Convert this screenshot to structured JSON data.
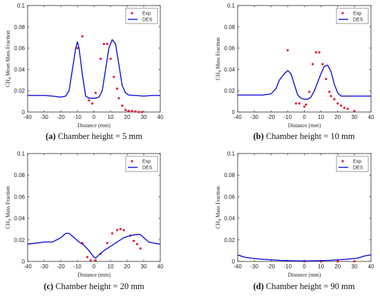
{
  "chart_data": [
    {
      "type": "scatter+line",
      "panel_letter": "(a)",
      "caption": "Chamber height = 5 mm",
      "xlabel": "Distance (mm)",
      "ylabel": "CH",
      "ylabel_sub": "4",
      "ylabel_rest": " Mean Mass Fraction",
      "xlim": [
        -40,
        40
      ],
      "ylim": [
        0,
        0.1
      ],
      "xticks": [
        "-40",
        "-30",
        "-20",
        "-10",
        "0",
        "10",
        "20",
        "30",
        "40"
      ],
      "yticks": [
        "0",
        "0.02",
        "0.04",
        "0.06",
        "0.08",
        "0.1"
      ],
      "legend": {
        "placement": "top-right",
        "entries": [
          "Exp",
          "DES"
        ]
      },
      "series": [
        {
          "name": "Exp",
          "kind": "scatter",
          "color": "#e8112d",
          "points": [
            [
              -10,
              0.06
            ],
            [
              -7,
              0.071
            ],
            [
              -3,
              0.011
            ],
            [
              -1,
              0.008
            ],
            [
              1,
              0.018
            ],
            [
              4,
              0.05
            ],
            [
              6,
              0.064
            ],
            [
              8,
              0.064
            ],
            [
              10,
              0.05
            ],
            [
              12,
              0.033
            ],
            [
              14,
              0.022
            ],
            [
              15,
              0.013
            ],
            [
              17,
              0.006
            ],
            [
              19,
              0.002
            ],
            [
              21,
              0.001
            ],
            [
              23,
              0.001
            ],
            [
              25,
              0.0005
            ],
            [
              27,
              0.0
            ],
            [
              29,
              0.0
            ]
          ]
        },
        {
          "name": "DES",
          "kind": "line",
          "color": "#0a0adc",
          "points": [
            [
              -40,
              0.0155
            ],
            [
              -30,
              0.0155
            ],
            [
              -25,
              0.015
            ],
            [
              -20,
              0.014
            ],
            [
              -17,
              0.015
            ],
            [
              -15,
              0.02
            ],
            [
              -13,
              0.04
            ],
            [
              -11,
              0.06
            ],
            [
              -10,
              0.066
            ],
            [
              -9,
              0.06
            ],
            [
              -7,
              0.035
            ],
            [
              -5,
              0.015
            ],
            [
              -3,
              0.013
            ],
            [
              -1,
              0.013
            ],
            [
              1,
              0.013
            ],
            [
              3,
              0.014
            ],
            [
              5,
              0.02
            ],
            [
              7,
              0.04
            ],
            [
              9,
              0.06
            ],
            [
              11,
              0.068
            ],
            [
              13,
              0.064
            ],
            [
              15,
              0.045
            ],
            [
              17,
              0.025
            ],
            [
              19,
              0.018
            ],
            [
              21,
              0.016
            ],
            [
              25,
              0.0155
            ],
            [
              30,
              0.015
            ],
            [
              35,
              0.0155
            ],
            [
              40,
              0.0155
            ]
          ]
        }
      ]
    },
    {
      "type": "scatter+line",
      "panel_letter": "(b)",
      "caption": "Chamber height = 10 mm",
      "xlabel": "Distance (mm)",
      "ylabel": "CH",
      "ylabel_sub": "4",
      "ylabel_rest": " Mass Fraction",
      "xlim": [
        -40,
        40
      ],
      "ylim": [
        0,
        0.1
      ],
      "xticks": [
        "-40",
        "-30",
        "-20",
        "-10",
        "0",
        "10",
        "20",
        "30",
        "40"
      ],
      "yticks": [
        "0",
        "0.02",
        "0.04",
        "0.06",
        "0.08",
        "0.1"
      ],
      "legend": {
        "placement": "top-right",
        "entries": [
          "Exp",
          "DES"
        ]
      },
      "series": [
        {
          "name": "Exp",
          "kind": "scatter",
          "color": "#e8112d",
          "points": [
            [
              -10,
              0.058
            ],
            [
              -5,
              0.008
            ],
            [
              -3,
              0.008
            ],
            [
              0,
              0.005
            ],
            [
              1,
              0.007
            ],
            [
              3,
              0.019
            ],
            [
              5,
              0.045
            ],
            [
              7,
              0.056
            ],
            [
              9,
              0.056
            ],
            [
              11,
              0.045
            ],
            [
              13,
              0.031
            ],
            [
              15,
              0.019
            ],
            [
              16,
              0.015
            ],
            [
              18,
              0.012
            ],
            [
              20,
              0.008
            ],
            [
              22,
              0.006
            ],
            [
              24,
              0.004
            ],
            [
              26,
              0.003
            ],
            [
              30,
              0.001
            ]
          ]
        },
        {
          "name": "DES",
          "kind": "line",
          "color": "#0a0adc",
          "points": [
            [
              -40,
              0.016
            ],
            [
              -30,
              0.016
            ],
            [
              -25,
              0.016
            ],
            [
              -20,
              0.017
            ],
            [
              -17,
              0.022
            ],
            [
              -15,
              0.03
            ],
            [
              -12,
              0.036
            ],
            [
              -10,
              0.039
            ],
            [
              -8,
              0.036
            ],
            [
              -6,
              0.026
            ],
            [
              -4,
              0.016
            ],
            [
              -2,
              0.013
            ],
            [
              0,
              0.012
            ],
            [
              2,
              0.012
            ],
            [
              4,
              0.014
            ],
            [
              6,
              0.02
            ],
            [
              8,
              0.028
            ],
            [
              10,
              0.036
            ],
            [
              12,
              0.043
            ],
            [
              14,
              0.044
            ],
            [
              16,
              0.038
            ],
            [
              18,
              0.026
            ],
            [
              20,
              0.018
            ],
            [
              22,
              0.015
            ],
            [
              25,
              0.015
            ],
            [
              30,
              0.015
            ],
            [
              35,
              0.015
            ],
            [
              40,
              0.015
            ]
          ]
        }
      ]
    },
    {
      "type": "scatter+line",
      "panel_letter": "(c)",
      "caption": "Chamber height = 20 mm",
      "xlabel": "Distance (mm)",
      "ylabel": "CH",
      "ylabel_sub": "4",
      "ylabel_rest": " Mass Fraction",
      "xlim": [
        -40,
        40
      ],
      "ylim": [
        0,
        0.1
      ],
      "xticks": [
        "-40",
        "-30",
        "-20",
        "-10",
        "0",
        "10",
        "20",
        "30",
        "40"
      ],
      "yticks": [
        "0",
        "0.02",
        "0.04",
        "0.06",
        "0.08",
        "0.1"
      ],
      "legend": {
        "placement": "top-right",
        "entries": [
          "Exp",
          "DES"
        ]
      },
      "series": [
        {
          "name": "Exp",
          "kind": "scatter",
          "color": "#e8112d",
          "points": [
            [
              -7,
              0.017
            ],
            [
              -4,
              0.004
            ],
            [
              -2,
              0.001
            ],
            [
              1,
              0.001
            ],
            [
              4,
              0.007
            ],
            [
              8,
              0.017
            ],
            [
              11,
              0.026
            ],
            [
              14,
              0.029
            ],
            [
              16,
              0.03
            ],
            [
              18,
              0.029
            ],
            [
              22,
              0.024
            ],
            [
              24,
              0.019
            ],
            [
              26,
              0.016
            ],
            [
              28,
              0.012
            ]
          ]
        },
        {
          "name": "DES",
          "kind": "line",
          "color": "#0a0adc",
          "points": [
            [
              -40,
              0.016
            ],
            [
              -35,
              0.017
            ],
            [
              -30,
              0.018
            ],
            [
              -25,
              0.018
            ],
            [
              -20,
              0.022
            ],
            [
              -17,
              0.026
            ],
            [
              -15,
              0.026
            ],
            [
              -12,
              0.022
            ],
            [
              -9,
              0.018
            ],
            [
              -6,
              0.015
            ],
            [
              -3,
              0.01
            ],
            [
              0,
              0.004
            ],
            [
              1,
              0.003
            ],
            [
              3,
              0.006
            ],
            [
              6,
              0.01
            ],
            [
              10,
              0.014
            ],
            [
              14,
              0.018
            ],
            [
              18,
              0.022
            ],
            [
              22,
              0.024
            ],
            [
              26,
              0.025
            ],
            [
              28,
              0.025
            ],
            [
              30,
              0.022
            ],
            [
              33,
              0.018
            ],
            [
              36,
              0.017
            ],
            [
              40,
              0.016
            ]
          ]
        }
      ]
    },
    {
      "type": "scatter+line",
      "panel_letter": "(d)",
      "caption": "Chamber height = 90 mm",
      "xlabel": "Distance (mm)",
      "ylabel": "CH",
      "ylabel_sub": "4",
      "ylabel_rest": " Mass Fraction",
      "xlim": [
        -40,
        40
      ],
      "ylim": [
        0,
        0.1
      ],
      "xticks": [
        "-40",
        "-30",
        "-20",
        "-10",
        "0",
        "10",
        "20",
        "30",
        "40"
      ],
      "yticks": [
        "0",
        "0.02",
        "0.04",
        "0.06",
        "0.08",
        "0.1"
      ],
      "legend": {
        "placement": "top-right",
        "entries": [
          "Exp",
          "DES"
        ]
      },
      "series": [
        {
          "name": "Exp",
          "kind": "scatter",
          "color": "#e8112d",
          "points": [
            [
              0,
              0.0
            ],
            [
              10,
              0.0
            ],
            [
              20,
              0.0
            ],
            [
              30,
              0.0
            ]
          ]
        },
        {
          "name": "DES",
          "kind": "line",
          "color": "#0a0adc",
          "points": [
            [
              -40,
              0.006
            ],
            [
              -36,
              0.004
            ],
            [
              -32,
              0.003
            ],
            [
              -25,
              0.002
            ],
            [
              -15,
              0.001
            ],
            [
              -5,
              0.0005
            ],
            [
              0,
              0.0005
            ],
            [
              5,
              0.0005
            ],
            [
              15,
              0.001
            ],
            [
              25,
              0.002
            ],
            [
              32,
              0.003
            ],
            [
              36,
              0.005
            ],
            [
              40,
              0.006
            ]
          ]
        }
      ]
    }
  ]
}
